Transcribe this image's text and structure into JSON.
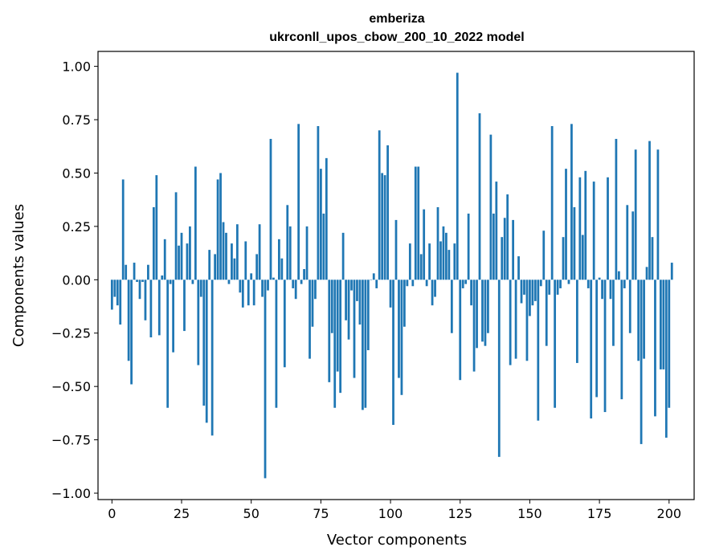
{
  "chart_data": {
    "type": "bar",
    "title": "emberiza",
    "subtitle": "ukrconll_upos_cbow_200_10_2022 model",
    "xlabel": "Vector components",
    "ylabel": "Components values",
    "xlim": [
      -5,
      209
    ],
    "ylim": [
      -1.03,
      1.07
    ],
    "xticks": [
      0,
      25,
      50,
      75,
      100,
      125,
      150,
      175,
      200
    ],
    "yticks": [
      -1.0,
      -0.75,
      -0.5,
      -0.25,
      0.0,
      0.25,
      0.5,
      0.75,
      1.0
    ],
    "xtick_labels": [
      "0",
      "25",
      "50",
      "75",
      "100",
      "125",
      "150",
      "175",
      "200"
    ],
    "ytick_labels": [
      "−1.00",
      "−0.75",
      "−0.50",
      "−0.25",
      "0.00",
      "0.25",
      "0.50",
      "0.75",
      "1.00"
    ],
    "grid": false,
    "bar_color": "#1f77b4",
    "values": [
      -0.14,
      -0.08,
      -0.12,
      -0.21,
      0.47,
      0.07,
      -0.38,
      -0.49,
      0.08,
      -0.01,
      -0.09,
      -0.01,
      -0.19,
      0.07,
      -0.27,
      0.34,
      0.49,
      -0.26,
      0.02,
      0.19,
      -0.6,
      -0.02,
      -0.34,
      0.41,
      0.16,
      0.22,
      -0.24,
      0.17,
      0.25,
      -0.02,
      0.53,
      -0.4,
      -0.08,
      -0.59,
      -0.67,
      0.14,
      -0.73,
      0.12,
      0.47,
      0.5,
      0.27,
      0.22,
      -0.02,
      0.17,
      0.1,
      0.26,
      -0.06,
      -0.13,
      0.18,
      -0.12,
      0.03,
      -0.12,
      0.12,
      0.26,
      -0.08,
      -0.93,
      -0.05,
      0.66,
      0.01,
      -0.6,
      0.19,
      0.1,
      -0.41,
      0.35,
      0.25,
      -0.04,
      -0.09,
      0.73,
      -0.02,
      0.05,
      0.25,
      -0.37,
      -0.22,
      -0.09,
      0.72,
      0.52,
      0.31,
      0.57,
      -0.48,
      -0.25,
      -0.6,
      -0.43,
      -0.53,
      0.22,
      -0.19,
      -0.28,
      -0.05,
      -0.46,
      -0.1,
      -0.21,
      -0.61,
      -0.6,
      -0.33,
      0.0,
      0.03,
      -0.04,
      0.7,
      0.5,
      0.49,
      0.63,
      -0.13,
      -0.68,
      0.28,
      -0.46,
      -0.54,
      -0.22,
      -0.03,
      0.17,
      -0.03,
      0.53,
      0.53,
      0.12,
      0.33,
      -0.03,
      0.17,
      -0.12,
      -0.08,
      0.34,
      0.18,
      0.25,
      0.22,
      0.14,
      -0.25,
      0.17,
      0.97,
      -0.47,
      -0.04,
      -0.02,
      0.31,
      -0.12,
      -0.43,
      -0.32,
      0.78,
      -0.29,
      -0.31,
      -0.25,
      0.68,
      0.31,
      0.46,
      -0.83,
      0.2,
      0.29,
      0.4,
      -0.4,
      0.28,
      -0.37,
      0.11,
      -0.11,
      -0.07,
      -0.38,
      -0.17,
      -0.12,
      -0.1,
      -0.66,
      -0.03,
      0.23,
      -0.31,
      -0.07,
      0.72,
      -0.6,
      -0.07,
      -0.04,
      0.2,
      0.52,
      -0.02,
      0.73,
      0.34,
      -0.39,
      0.48,
      0.21,
      0.51,
      -0.04,
      -0.65,
      0.46,
      -0.55,
      0.01,
      -0.09,
      -0.62,
      0.48,
      -0.09,
      -0.31,
      0.66,
      0.04,
      -0.56,
      -0.04,
      0.35,
      -0.25,
      0.32,
      0.61,
      -0.38,
      -0.77,
      -0.37,
      0.06,
      0.65,
      0.2,
      -0.64,
      0.61,
      -0.42,
      -0.42,
      -0.74,
      -0.6,
      0.08
    ]
  }
}
